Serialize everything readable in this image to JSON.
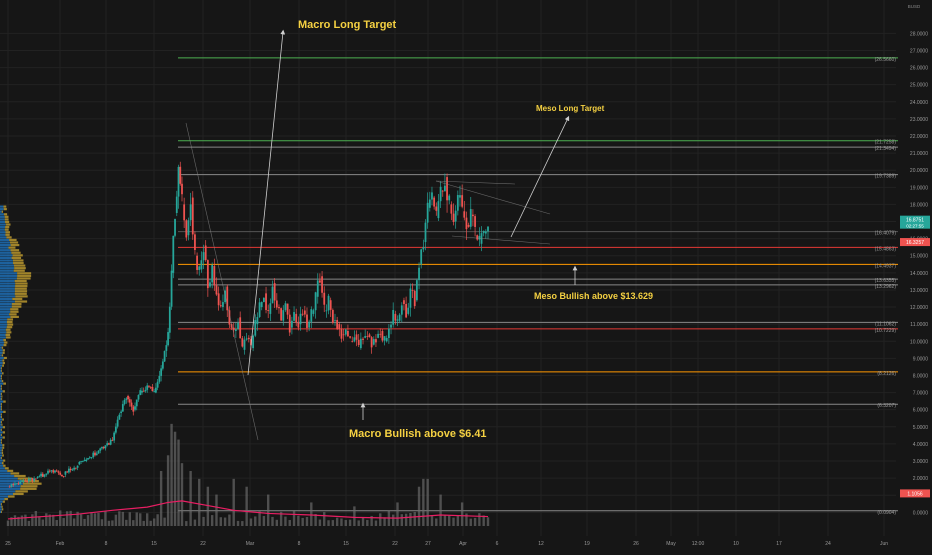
{
  "colors": {
    "background": "#161616",
    "bull": "#26a69a",
    "bear": "#ef5350",
    "grid": "#222222",
    "annotation": "#f5d142",
    "arrow": "#cfcfcf",
    "price_badge": "#26a69a",
    "price_badge2": "#ef5350",
    "volume": "#6e6e6e",
    "vol_ma": "#e91e63",
    "profile_a": "#1f6fb5",
    "profile_b": "#b8962e"
  },
  "currency": "BUSD",
  "annotations": [
    {
      "id": "macro-long-target",
      "text": "Macro Long Target",
      "price": 27.1
    },
    {
      "id": "meso-long-target",
      "text": "Meso Long Target",
      "price": 22.55
    },
    {
      "id": "meso-bullish",
      "text": "Meso Bullish above $13.629",
      "price": 12.3
    },
    {
      "id": "macro-bullish",
      "text": "Macro Bullish above $6.41",
      "price": 5.2
    }
  ],
  "current_price": {
    "value": "16.8751",
    "timer": "02:27:55",
    "value2": "16.3257"
  },
  "chart_data": {
    "type": "candlestick",
    "ylim": [
      -0.8,
      29.6
    ],
    "yticks": [
      "0.0000",
      "1.0000",
      "2.0000",
      "3.0000",
      "4.0000",
      "5.0000",
      "6.0000",
      "7.0000",
      "8.0000",
      "9.0000",
      "10.0000",
      "11.0000",
      "12.0000",
      "13.0000",
      "14.0000",
      "15.0000",
      "16.0000",
      "17.0000",
      "18.0000",
      "19.0000",
      "20.0000",
      "21.0000",
      "22.0000",
      "23.0000",
      "24.0000",
      "25.0000",
      "26.0000",
      "27.0000",
      "28.0000"
    ],
    "xticks": [
      {
        "label": "25",
        "date": "Jan 25"
      },
      {
        "label": "Feb",
        "date": "Feb 1"
      },
      {
        "label": "8",
        "date": "Feb 8"
      },
      {
        "label": "15",
        "date": "Feb 15"
      },
      {
        "label": "22",
        "date": "Feb 22"
      },
      {
        "label": "Mar",
        "date": "Mar 1"
      },
      {
        "label": "8",
        "date": "Mar 8"
      },
      {
        "label": "15",
        "date": "Mar 15"
      },
      {
        "label": "22",
        "date": "Mar 22"
      },
      {
        "label": "27",
        "date": "Mar 27"
      },
      {
        "label": "Apr",
        "date": "Apr 1"
      },
      {
        "label": "6",
        "date": "Apr 6"
      },
      {
        "label": "12",
        "date": "Apr 12"
      },
      {
        "label": "19",
        "date": "Apr 19"
      },
      {
        "label": "26",
        "date": "Apr 26"
      },
      {
        "label": "May",
        "date": "May 1"
      },
      {
        "label": "12:00",
        "date": "May 3"
      },
      {
        "label": "10",
        "date": "May 10"
      },
      {
        "label": "17",
        "date": "May 17"
      },
      {
        "label": "24",
        "date": "May 24"
      },
      {
        "label": "Jun",
        "date": "Jun 1"
      }
    ],
    "levels": [
      {
        "label": "26.5660",
        "price": 26.566,
        "color": "#4caf50"
      },
      {
        "label": "21.7258",
        "price": 21.7258,
        "color": "#4caf50"
      },
      {
        "label": "21.3494",
        "price": 21.3494,
        "color": "#888888"
      },
      {
        "label": "19.7389",
        "price": 19.7389,
        "color": "#888888"
      },
      {
        "label": "16.4079",
        "price": 16.4079,
        "color": "#555555"
      },
      {
        "label": "15.4863",
        "price": 15.4863,
        "color": "#e53935"
      },
      {
        "label": "14.4937",
        "price": 14.4937,
        "color": "#ff9800"
      },
      {
        "label": "13.6355",
        "price": 13.6355,
        "color": "#888888"
      },
      {
        "label": "13.2962",
        "price": 13.2962,
        "color": "#888888"
      },
      {
        "label": "11.1062",
        "price": 11.1062,
        "color": "#888888"
      },
      {
        "label": "10.7229",
        "price": 10.7229,
        "color": "#e53935"
      },
      {
        "label": "8.2126",
        "price": 8.2126,
        "color": "#ff9800"
      },
      {
        "label": "6.3207",
        "price": 6.3207,
        "color": "#888888"
      },
      {
        "label": "0.0904",
        "price": 0.0904,
        "color": "#888888"
      }
    ],
    "close_path": [
      [
        0,
        1.5
      ],
      [
        4,
        1.8
      ],
      [
        8,
        2.0
      ],
      [
        12,
        2.4
      ],
      [
        16,
        2.2
      ],
      [
        20,
        2.8
      ],
      [
        22,
        3.0
      ],
      [
        26,
        3.6
      ],
      [
        30,
        4.2
      ],
      [
        32,
        5.8
      ],
      [
        34,
        6.8
      ],
      [
        36,
        6.0
      ],
      [
        38,
        7.0
      ],
      [
        40,
        7.4
      ],
      [
        42,
        7.0
      ],
      [
        44,
        8.4
      ],
      [
        46,
        10.5
      ],
      [
        47,
        14.0
      ],
      [
        48,
        17.5
      ],
      [
        49,
        20.2
      ],
      [
        50,
        18.0
      ],
      [
        51,
        16.2
      ],
      [
        52,
        18.4
      ],
      [
        53,
        15.0
      ],
      [
        54,
        14.2
      ],
      [
        55,
        15.6
      ],
      [
        56,
        13.2
      ],
      [
        57,
        14.4
      ],
      [
        58,
        12.8
      ],
      [
        59,
        12.0
      ],
      [
        60,
        13.2
      ],
      [
        61,
        11.0
      ],
      [
        62,
        10.6
      ],
      [
        63,
        11.4
      ],
      [
        64,
        9.5
      ],
      [
        65,
        10.2
      ],
      [
        66,
        9.6
      ],
      [
        67,
        11.0
      ],
      [
        68,
        12.0
      ],
      [
        69,
        12.8
      ],
      [
        70,
        11.6
      ],
      [
        71,
        13.4
      ],
      [
        72,
        12.0
      ],
      [
        73,
        11.2
      ],
      [
        74,
        12.2
      ],
      [
        75,
        10.8
      ],
      [
        76,
        11.6
      ],
      [
        77,
        11.0
      ],
      [
        78,
        11.8
      ],
      [
        79,
        10.8
      ],
      [
        80,
        11.6
      ],
      [
        81,
        12.6
      ],
      [
        82,
        13.8
      ],
      [
        83,
        11.8
      ],
      [
        84,
        12.4
      ],
      [
        85,
        11.2
      ],
      [
        86,
        11.0
      ],
      [
        87,
        10.4
      ],
      [
        88,
        10.6
      ],
      [
        89,
        10.0
      ],
      [
        90,
        10.4
      ],
      [
        91,
        9.6
      ],
      [
        92,
        10.2
      ],
      [
        93,
        10.4
      ],
      [
        94,
        9.8
      ],
      [
        95,
        10.2
      ],
      [
        96,
        10.6
      ],
      [
        97,
        10.0
      ],
      [
        98,
        10.8
      ],
      [
        99,
        11.6
      ],
      [
        100,
        11.2
      ],
      [
        101,
        12.4
      ],
      [
        102,
        11.6
      ],
      [
        103,
        13.0
      ],
      [
        104,
        12.4
      ],
      [
        105,
        14.5
      ],
      [
        106,
        15.8
      ],
      [
        107,
        17.8
      ],
      [
        108,
        18.4
      ],
      [
        109,
        17.2
      ],
      [
        110,
        18.8
      ],
      [
        111,
        19.6
      ],
      [
        112,
        18.0
      ],
      [
        113,
        17.0
      ],
      [
        114,
        18.4
      ],
      [
        115,
        17.6
      ],
      [
        116,
        16.8
      ],
      [
        117,
        17.4
      ],
      [
        118,
        16.2
      ],
      [
        119,
        15.7
      ],
      [
        120,
        16.3
      ],
      [
        121,
        16.9
      ]
    ],
    "x_domain": [
      0,
      260
    ],
    "volume_max": 14,
    "volume_ma": [
      [
        0,
        0.9
      ],
      [
        10,
        1.2
      ],
      [
        20,
        1.5
      ],
      [
        30,
        2.0
      ],
      [
        40,
        2.4
      ],
      [
        46,
        3.0
      ],
      [
        50,
        3.2
      ],
      [
        56,
        2.6
      ],
      [
        62,
        2.0
      ],
      [
        70,
        1.6
      ],
      [
        80,
        1.4
      ],
      [
        90,
        1.1
      ],
      [
        100,
        1.0
      ],
      [
        110,
        1.4
      ],
      [
        121,
        1.2
      ]
    ],
    "volume_spikes": [
      [
        44,
        7
      ],
      [
        46,
        9
      ],
      [
        47,
        13
      ],
      [
        48,
        12
      ],
      [
        49,
        11
      ],
      [
        50,
        8
      ],
      [
        52,
        7
      ],
      [
        54,
        6
      ],
      [
        56,
        5
      ],
      [
        58,
        4
      ],
      [
        62,
        6
      ],
      [
        65,
        5
      ],
      [
        70,
        4
      ],
      [
        80,
        3
      ],
      [
        90,
        2.5
      ],
      [
        100,
        3
      ],
      [
        105,
        5
      ],
      [
        106,
        6
      ],
      [
        107,
        6
      ],
      [
        110,
        4
      ],
      [
        115,
        3
      ]
    ],
    "current_price": 16.8751,
    "price_badges": [
      "16.8751",
      "16.3257",
      "1.1056"
    ]
  }
}
